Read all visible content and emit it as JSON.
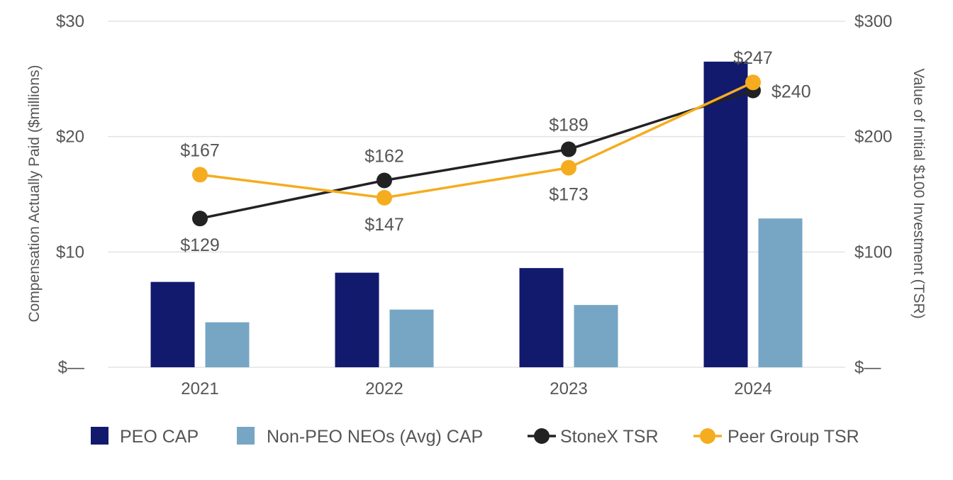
{
  "chart_data": {
    "type": "bar",
    "categories": [
      "2021",
      "2022",
      "2023",
      "2024"
    ],
    "y_left": {
      "label": "Compensation Actually Paid ($millions)",
      "range": [
        0,
        30
      ],
      "ticks": [
        0,
        10,
        20,
        30
      ],
      "tick_labels": [
        "$—",
        "$10",
        "$20",
        "$30"
      ]
    },
    "y_right": {
      "label": "Value of Initial $100 Investment (TSR)",
      "range": [
        0,
        300
      ],
      "ticks": [
        0,
        100,
        200,
        300
      ],
      "tick_labels": [
        "$—",
        "$100",
        "$200",
        "$300"
      ]
    },
    "grid": true,
    "legend_position": "bottom",
    "series": [
      {
        "name": "PEO CAP",
        "kind": "bar",
        "axis": "left",
        "color": "#121a6e",
        "values": [
          7.4,
          8.2,
          8.6,
          26.5
        ]
      },
      {
        "name": "Non-PEO NEOs (Avg) CAP",
        "kind": "bar",
        "axis": "left",
        "color": "#77a6c5",
        "values": [
          3.9,
          5.0,
          5.4,
          12.9
        ]
      },
      {
        "name": "StoneX TSR",
        "kind": "line",
        "axis": "right",
        "color": "#222222",
        "values": [
          129,
          162,
          189,
          240
        ],
        "labels": [
          "$129",
          "$162",
          "$189",
          "$240"
        ],
        "label_pos": [
          "below",
          "above",
          "above",
          "right"
        ]
      },
      {
        "name": "Peer Group TSR",
        "kind": "line",
        "axis": "right",
        "color": "#f5ac1f",
        "values": [
          167,
          147,
          173,
          247
        ],
        "labels": [
          "$167",
          "$147",
          "$173",
          "$247"
        ],
        "label_pos": [
          "above",
          "below",
          "below",
          "above"
        ]
      }
    ]
  }
}
